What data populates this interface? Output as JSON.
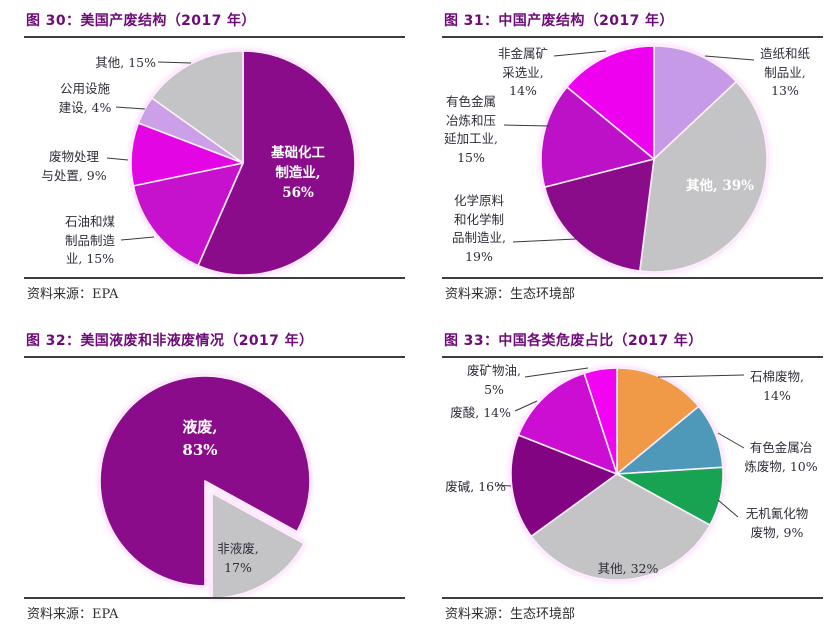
{
  "panels": [
    {
      "title": "图 30：美国产废结构（2017 年）",
      "source": "资料来源：EPA",
      "labels": [
        {
          "lines": [
            "其他, 15%"
          ]
        },
        {
          "lines": [
            "公用设施",
            "建设, 4%"
          ]
        },
        {
          "lines": [
            "废物处理",
            "与处置, 9%"
          ]
        },
        {
          "lines": [
            "石油和煤",
            "制品制造",
            "业, 15%"
          ]
        },
        {
          "lines": [
            "基础化工",
            "制造业,",
            "56%"
          ]
        }
      ]
    },
    {
      "title": "图 31：中国产废结构（2017 年）",
      "source": "资料来源：生态环境部",
      "labels": [
        {
          "lines": [
            "非金属矿",
            "采选业,",
            "14%"
          ]
        },
        {
          "lines": [
            "有色金属",
            "冶炼和压",
            "延加工业,",
            "15%"
          ]
        },
        {
          "lines": [
            "化学原料",
            "和化学制",
            "品制造业,",
            "19%"
          ]
        },
        {
          "lines": [
            "造纸和纸",
            "制品业,",
            "13%"
          ]
        },
        {
          "lines": [
            "其他, 39%"
          ]
        }
      ]
    },
    {
      "title": "图 32：美国液废和非液废情况（2017 年）",
      "source": "资料来源：EPA",
      "labels": [
        {
          "lines": [
            "液废,",
            "83%"
          ]
        },
        {
          "lines": [
            "非液废,",
            "17%"
          ]
        }
      ]
    },
    {
      "title": "图 33：中国各类危废占比（2017 年）",
      "source": "资料来源：生态环境部",
      "labels": [
        {
          "lines": [
            "石棉废物,",
            "14%"
          ]
        },
        {
          "lines": [
            "有色金属冶",
            "炼废物, 10%"
          ]
        },
        {
          "lines": [
            "无机氰化物",
            "废物, 9%"
          ]
        },
        {
          "lines": [
            "其他, 32%"
          ]
        },
        {
          "lines": [
            "废碱, 16%"
          ]
        },
        {
          "lines": [
            "废酸, 14%"
          ]
        },
        {
          "lines": [
            "废矿物油,",
            "5%"
          ]
        }
      ]
    }
  ],
  "chart_data": [
    {
      "type": "pie",
      "title": "图 30：美国产废结构（2017 年）",
      "source": "资料来源：EPA",
      "unit": "%",
      "slices": [
        {
          "label": "基础化工制造业",
          "value": 56,
          "color": "#8A0C8B"
        },
        {
          "label": "石油和煤制品制造业",
          "value": 15,
          "color": "#C712CD"
        },
        {
          "label": "废物处理与处置",
          "value": 9,
          "color": "#E405E4"
        },
        {
          "label": "公用设施建设",
          "value": 4,
          "color": "#CCA0E8"
        },
        {
          "label": "其他",
          "value": 15,
          "color": "#C4C3C5"
        }
      ]
    },
    {
      "type": "pie",
      "title": "图 31：中国产废结构（2017 年）",
      "source": "资料来源：生态环境部",
      "unit": "%",
      "slices": [
        {
          "label": "造纸和纸制品业",
          "value": 13,
          "color": "#C79AE8"
        },
        {
          "label": "其他",
          "value": 39,
          "color": "#C4C3C5"
        },
        {
          "label": "化学原料和化学制品制造业",
          "value": 19,
          "color": "#8A0C8B"
        },
        {
          "label": "有色金属冶炼和压延加工业",
          "value": 15,
          "color": "#BC11C6"
        },
        {
          "label": "非金属矿采选业",
          "value": 14,
          "color": "#EE01EE"
        }
      ]
    },
    {
      "type": "pie",
      "title": "图 32：美国液废和非液废情况（2017 年）",
      "source": "资料来源：EPA",
      "unit": "%",
      "slices": [
        {
          "label": "液废",
          "value": 83,
          "color": "#8A0C8B"
        },
        {
          "label": "非液废",
          "value": 17,
          "color": "#C4C3C5",
          "exploded": true
        }
      ]
    },
    {
      "type": "pie",
      "title": "图 33：中国各类危废占比（2017 年）",
      "source": "资料来源：生态环境部",
      "unit": "%",
      "slices": [
        {
          "label": "石棉废物",
          "value": 14,
          "color": "#F09A48"
        },
        {
          "label": "有色金属冶炼废物",
          "value": 10,
          "color": "#4E98B9"
        },
        {
          "label": "无机氰化物废物",
          "value": 9,
          "color": "#17A351"
        },
        {
          "label": "其他",
          "value": 32,
          "color": "#C4C3C5"
        },
        {
          "label": "废碱",
          "value": 16,
          "color": "#820483"
        },
        {
          "label": "废酸",
          "value": 14,
          "color": "#CB0ED1"
        },
        {
          "label": "废矿物油",
          "value": 5,
          "color": "#F203F2"
        }
      ]
    }
  ]
}
